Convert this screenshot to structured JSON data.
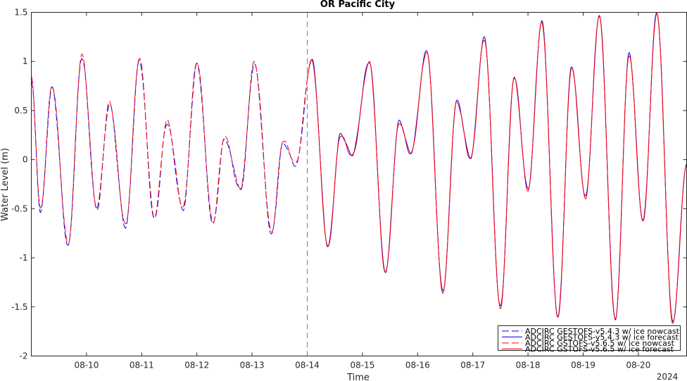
{
  "chart_data": {
    "type": "line",
    "title": "OR Pacific City",
    "xlabel": "Time",
    "ylabel": "Water Level (m)",
    "year_label": "2024",
    "ylim": [
      -2,
      1.5
    ],
    "yticks": [
      -2,
      -1.5,
      -1,
      -0.5,
      0,
      0.5,
      1,
      1.5
    ],
    "ytick_labels": [
      "-2",
      "-1.5",
      "-1",
      "-0.5",
      "0",
      "0.5",
      "1",
      "1.5"
    ],
    "xlim": [
      "2024-08-09T00:00",
      "2024-08-20T21:00"
    ],
    "xticks": [
      "08-10",
      "08-11",
      "08-12",
      "08-13",
      "08-14",
      "08-15",
      "08-16",
      "08-17",
      "08-18",
      "08-19",
      "08-20"
    ],
    "forecast_start": "2024-08-14T00:00",
    "legend_position": "bottom-right",
    "colors": {
      "gestofs": "#0000ff",
      "gstofs": "#ff0000",
      "grid_line": "#808080"
    },
    "extrema": [
      [
        "2024-08-09T00:00",
        0.82
      ],
      [
        "2024-08-09T04:00",
        -0.52
      ],
      [
        "2024-08-09T09:00",
        0.74
      ],
      [
        "2024-08-09T16:00",
        -0.87
      ],
      [
        "2024-08-09T22:00",
        1.05
      ],
      [
        "2024-08-10T04:30",
        -0.5
      ],
      [
        "2024-08-10T10:00",
        0.57
      ],
      [
        "2024-08-10T17:00",
        -0.68
      ],
      [
        "2024-08-10T23:00",
        1.02
      ],
      [
        "2024-08-11T05:30",
        -0.6
      ],
      [
        "2024-08-11T11:00",
        0.38
      ],
      [
        "2024-08-11T18:00",
        -0.5
      ],
      [
        "2024-08-12T00:00",
        0.98
      ],
      [
        "2024-08-12T07:00",
        -0.65
      ],
      [
        "2024-08-12T12:00",
        0.22
      ],
      [
        "2024-08-12T19:00",
        -0.3
      ],
      [
        "2024-08-13T01:00",
        0.98
      ],
      [
        "2024-08-13T08:30",
        -0.75
      ],
      [
        "2024-08-13T13:30",
        0.18
      ],
      [
        "2024-08-13T19:00",
        -0.05
      ],
      [
        "2024-08-14T02:00",
        1.02
      ],
      [
        "2024-08-14T09:00",
        -0.88
      ],
      [
        "2024-08-14T14:30",
        0.26
      ],
      [
        "2024-08-14T19:30",
        0.05
      ],
      [
        "2024-08-15T03:00",
        1.0
      ],
      [
        "2024-08-15T10:00",
        -1.14
      ],
      [
        "2024-08-15T16:00",
        0.39
      ],
      [
        "2024-08-15T21:00",
        0.07
      ],
      [
        "2024-08-16T04:00",
        1.11
      ],
      [
        "2024-08-16T11:00",
        -1.34
      ],
      [
        "2024-08-16T17:00",
        0.6
      ],
      [
        "2024-08-16T23:00",
        0.02
      ],
      [
        "2024-08-17T05:00",
        1.24
      ],
      [
        "2024-08-17T12:00",
        -1.5
      ],
      [
        "2024-08-17T18:00",
        0.84
      ],
      [
        "2024-08-18T00:00",
        -0.3
      ],
      [
        "2024-08-18T06:00",
        1.41
      ],
      [
        "2024-08-18T13:00",
        -1.6
      ],
      [
        "2024-08-18T19:00",
        0.95
      ],
      [
        "2024-08-19T01:00",
        -0.38
      ],
      [
        "2024-08-19T07:00",
        1.47
      ],
      [
        "2024-08-19T14:00",
        -1.62
      ],
      [
        "2024-08-19T20:00",
        1.08
      ],
      [
        "2024-08-20T02:00",
        -0.62
      ],
      [
        "2024-08-20T08:00",
        1.5
      ],
      [
        "2024-08-20T15:00",
        -1.65
      ],
      [
        "2024-08-20T21:00",
        -0.05
      ]
    ],
    "series": [
      {
        "name": "ADCIRC GESTOFS-v5.4.3 w/ ice nowcast",
        "color": "#0000ff",
        "style": "dashed",
        "segment": "nowcast",
        "offset": -0.01
      },
      {
        "name": "ADCIRC GESTOFS-v5.4.3 w/ ice forecast",
        "color": "#0000ff",
        "style": "solid",
        "segment": "forecast",
        "offset": 0.0
      },
      {
        "name": "ADCIRC GSTOFS-v5.6.5 w/ ice nowcast",
        "color": "#ff0000",
        "style": "dashed",
        "segment": "nowcast",
        "offset": 0.015
      },
      {
        "name": "ADCIRC GSTOFS-v5.6.5 w/ ice forecast",
        "color": "#ff0000",
        "style": "solid",
        "segment": "forecast",
        "offset": -0.012
      }
    ]
  }
}
